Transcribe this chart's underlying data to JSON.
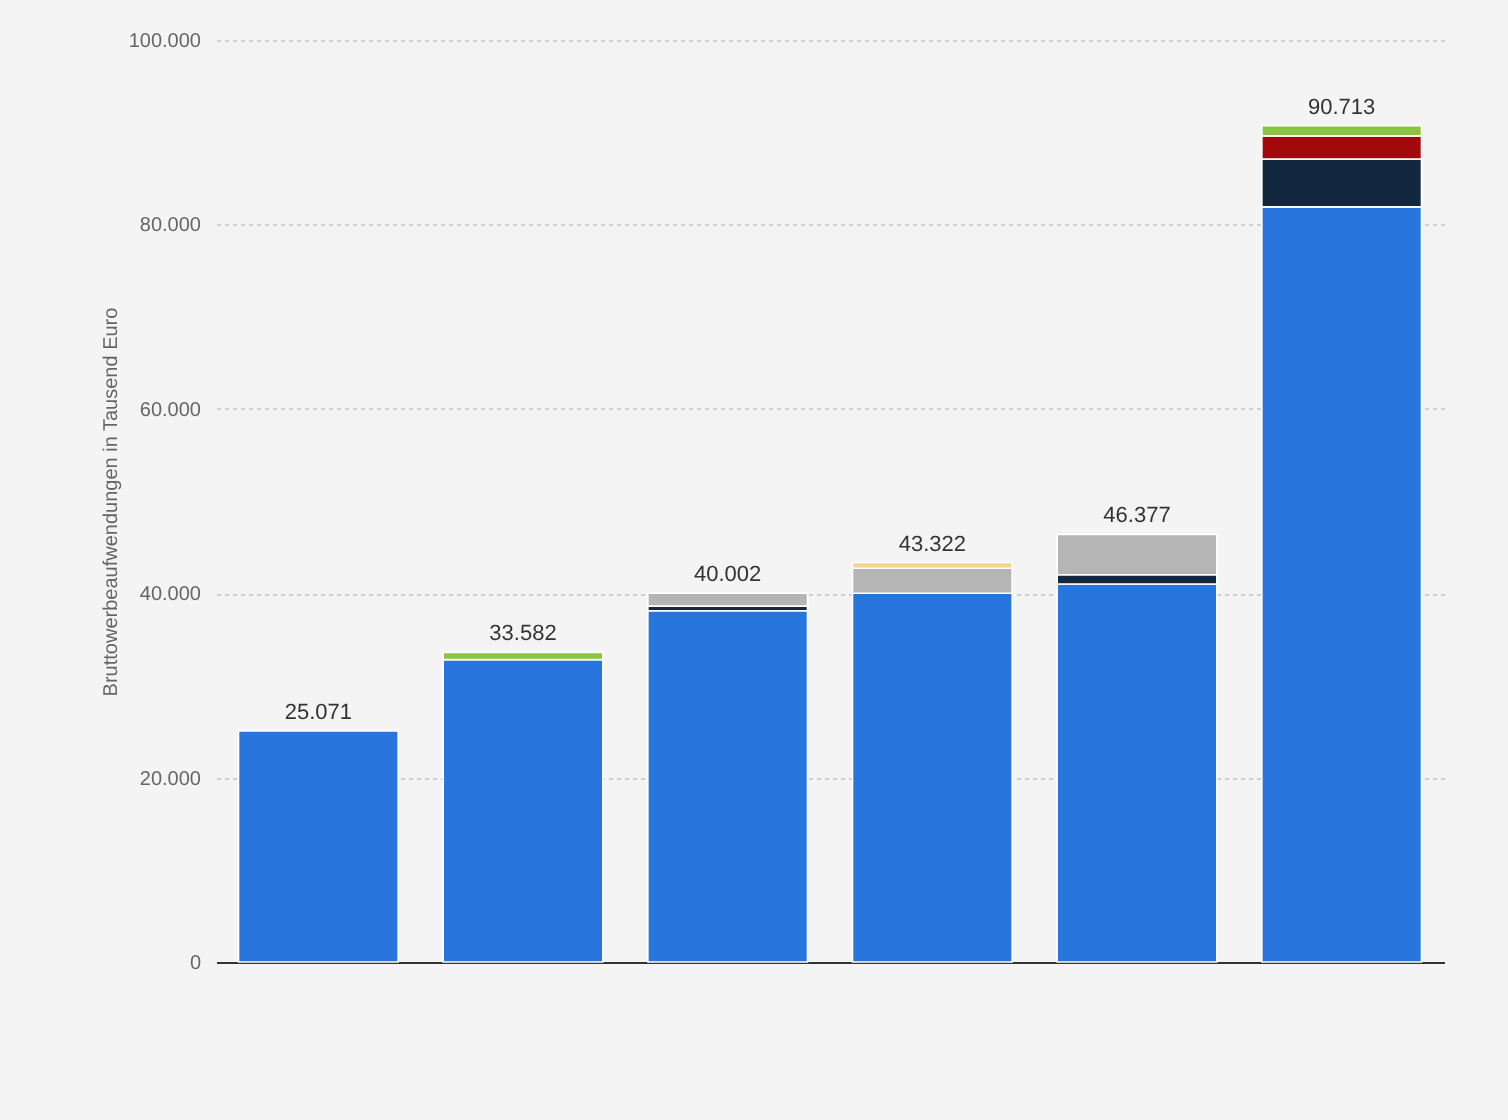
{
  "chart_data": {
    "type": "bar",
    "stacked": true,
    "ylabel": "Bruttowerbeaufwendungen in Tausend Euro",
    "categories": [
      null,
      null,
      null,
      null,
      null,
      null
    ],
    "series": [
      {
        "color": "#2876dd",
        "values": [
          25071,
          32800,
          38100,
          40000,
          41000,
          81900
        ]
      },
      {
        "color": "#13283f",
        "values": [
          null,
          null,
          500,
          null,
          1000,
          5200
        ]
      },
      {
        "color": "#b5b5b5",
        "values": [
          null,
          null,
          1402,
          2700,
          4377,
          null
        ]
      },
      {
        "color": "#a10a0a",
        "values": [
          null,
          null,
          null,
          null,
          null,
          2500
        ]
      },
      {
        "color": "#f3d58d",
        "values": [
          null,
          null,
          null,
          622,
          null,
          null
        ]
      },
      {
        "color": "#8bc53f",
        "values": [
          null,
          782,
          null,
          null,
          null,
          1113
        ]
      }
    ],
    "totals": [
      "25.071",
      "33.582",
      "40.002",
      "43.322",
      "46.377",
      "90.713"
    ],
    "ylim": [
      0,
      100000
    ],
    "yticks": [
      {
        "value": 0,
        "label": "0"
      },
      {
        "value": 20000,
        "label": "20.000"
      },
      {
        "value": 40000,
        "label": "40.000"
      },
      {
        "value": 60000,
        "label": "60.000"
      },
      {
        "value": 80000,
        "label": "80.000"
      },
      {
        "value": 100000,
        "label": "100.000"
      }
    ],
    "grid": "y",
    "tick_labels": "y"
  }
}
